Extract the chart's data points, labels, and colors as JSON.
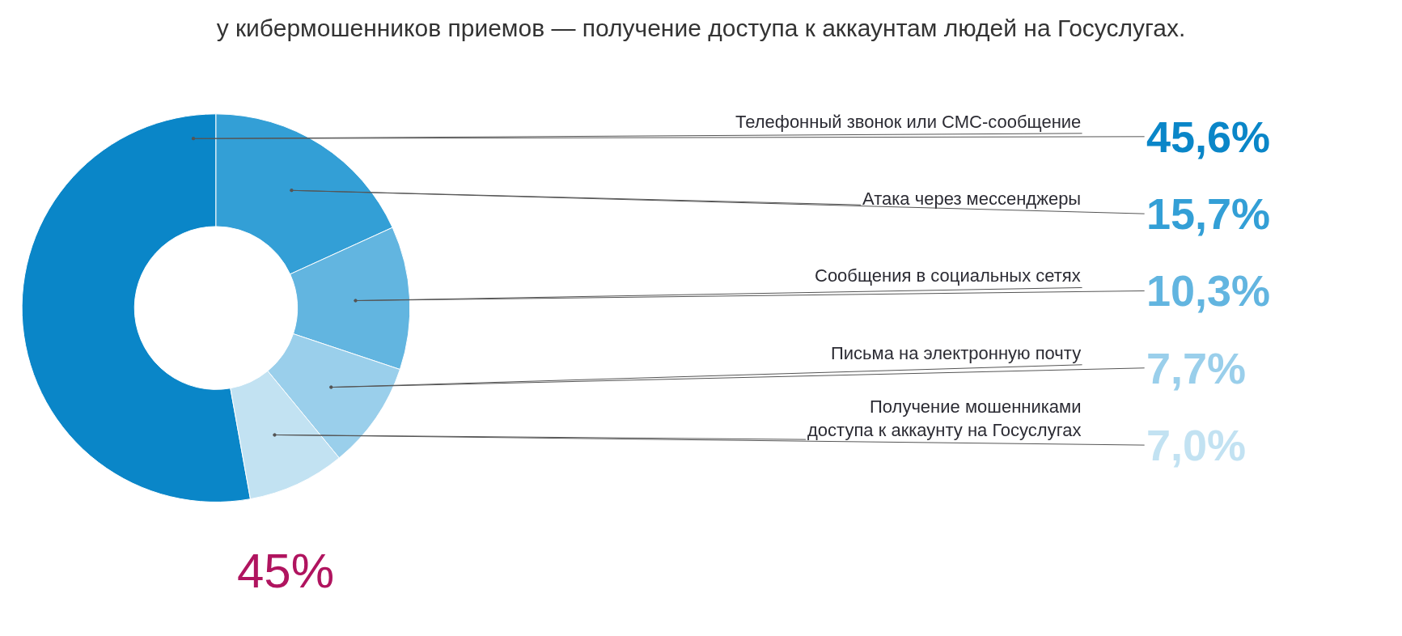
{
  "chart_data": {
    "type": "donut",
    "title": "у кибермошенников приемов — получение доступа к аккаунтам людей на Госуслугах.",
    "categories": [
      "Телефонный звонок или СМС-сообщение",
      "Атака через мессенджеры",
      "Сообщения в социальных сетях",
      "Письма на электронную почту",
      "Получение мошенниками\nдоступа к аккаунту на Госуслугах"
    ],
    "values": [
      45.6,
      15.7,
      10.3,
      7.7,
      7.0
    ],
    "colors": [
      "#0a86c8",
      "#339fd6",
      "#62b5e0",
      "#9acfeb",
      "#c2e2f2"
    ],
    "value_labels": [
      "45,6%",
      "15,7%",
      "10,3%",
      "7,7%",
      "7,0%"
    ],
    "annotations": [
      "45%"
    ],
    "legend": false
  }
}
